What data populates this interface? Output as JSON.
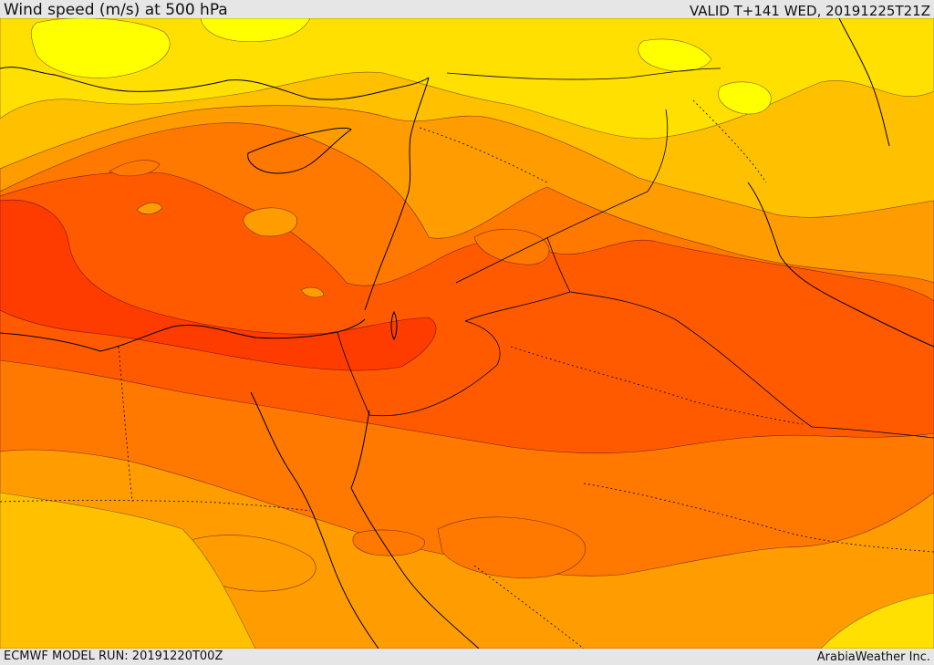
{
  "header": {
    "title": "Wind speed (m/s) at 500 hPa",
    "valid": "VALID T+141 WED, 20191225T21Z"
  },
  "footer": {
    "model_run": "ECMWF MODEL RUN: 20191220T00Z",
    "credit": "ArabiaWeather Inc."
  },
  "map": {
    "palette": {
      "level_1": "#ffff00",
      "level_2": "#ffe000",
      "level_3": "#ffc000",
      "level_4": "#ff9d00",
      "level_5": "#ff7800",
      "level_6": "#ff5a00",
      "level_7": "#ff3c00"
    },
    "coastline_color": "#000000",
    "border_style": "dotted"
  }
}
